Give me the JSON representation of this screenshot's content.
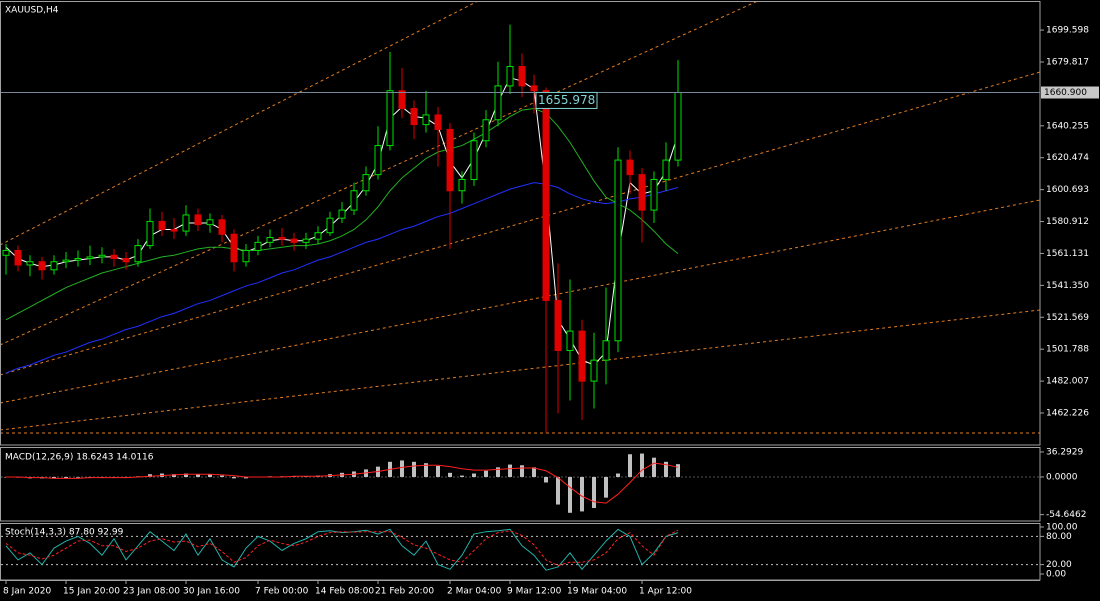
{
  "chart_data": [
    {
      "type": "candlestick",
      "title": "XAUUSD,H4",
      "categories": [
        "8 Jan 2020",
        null,
        null,
        null,
        null,
        "15 Jan 20:00",
        null,
        null,
        null,
        null,
        "23 Jan 08:00",
        null,
        null,
        null,
        null,
        "30 Jan 16:00",
        null,
        null,
        null,
        null,
        null,
        "7 Feb 00:00",
        null,
        null,
        null,
        null,
        "14 Feb 08:00",
        null,
        null,
        null,
        null,
        "21 Feb 20:00",
        null,
        null,
        null,
        null,
        null,
        "2 Mar 04:00",
        null,
        null,
        null,
        null,
        "9 Mar 12:00",
        null,
        null,
        null,
        null,
        "19 Mar 04:00",
        null,
        null,
        null,
        null,
        null,
        "1 Apr 12:00",
        null,
        null,
        null
      ],
      "open": [
        1560,
        1563,
        1554,
        1556,
        1551,
        1556,
        1557,
        1558,
        1559,
        1560,
        1558,
        1556,
        1566,
        1581,
        1576,
        1575,
        1585,
        1579,
        1582,
        1573,
        1556,
        1563,
        1568,
        1571,
        1570,
        1568,
        1570,
        1574,
        1583,
        1588,
        1600,
        1610,
        1628,
        1662,
        1651,
        1641,
        1647,
        1638,
        1600,
        1607,
        1631,
        1644,
        1665,
        1677,
        1665,
        1662,
        1532,
        1501,
        1513,
        1482,
        1495,
        1507,
        1619,
        1610,
        1588,
        1607,
        1619
      ],
      "high": [
        1567,
        1566,
        1560,
        1559,
        1560,
        1562,
        1563,
        1566,
        1565,
        1564,
        1562,
        1570,
        1589,
        1587,
        1583,
        1591,
        1589,
        1586,
        1585,
        1576,
        1567,
        1572,
        1576,
        1577,
        1574,
        1574,
        1578,
        1587,
        1593,
        1605,
        1615,
        1640,
        1686,
        1676,
        1656,
        1662,
        1652,
        1642,
        1612,
        1636,
        1650,
        1680,
        1703,
        1685,
        1672,
        1664,
        1555,
        1545,
        1520,
        1512,
        1540,
        1627,
        1625,
        1614,
        1612,
        1630,
        1681
      ],
      "low": [
        1548,
        1550,
        1547,
        1545,
        1548,
        1552,
        1553,
        1554,
        1555,
        1553,
        1551,
        1553,
        1564,
        1572,
        1570,
        1572,
        1575,
        1574,
        1568,
        1550,
        1553,
        1560,
        1565,
        1566,
        1563,
        1564,
        1567,
        1572,
        1580,
        1585,
        1597,
        1607,
        1625,
        1645,
        1632,
        1636,
        1615,
        1564,
        1592,
        1603,
        1627,
        1640,
        1660,
        1658,
        1648,
        1450,
        1462,
        1470,
        1458,
        1465,
        1480,
        1500,
        1598,
        1568,
        1580,
        1600,
        1615
      ],
      "close": [
        1563,
        1554,
        1556,
        1551,
        1556,
        1557,
        1558,
        1559,
        1560,
        1558,
        1556,
        1566,
        1581,
        1576,
        1575,
        1585,
        1579,
        1582,
        1573,
        1556,
        1563,
        1568,
        1571,
        1570,
        1568,
        1570,
        1574,
        1583,
        1588,
        1600,
        1610,
        1628,
        1662,
        1651,
        1641,
        1647,
        1638,
        1600,
        1607,
        1631,
        1644,
        1665,
        1677,
        1665,
        1662,
        1532,
        1501,
        1513,
        1482,
        1495,
        1507,
        1619,
        1610,
        1588,
        1607,
        1619,
        1660.9
      ],
      "up_color": "#00e000",
      "down_color": "#e00000",
      "series": [
        {
          "color": "#ffffff",
          "values": [
            1565,
            1558,
            1555,
            1553,
            1554,
            1556,
            1557,
            1558,
            1559,
            1559,
            1557,
            1560,
            1572,
            1576,
            1576,
            1580,
            1580,
            1580,
            1576,
            1565,
            1562,
            1565,
            1569,
            1570,
            1569,
            1569,
            1572,
            1578,
            1585,
            1593,
            1603,
            1617,
            1645,
            1652,
            1646,
            1645,
            1640,
            1618,
            1608,
            1620,
            1636,
            1655,
            1670,
            1668,
            1663,
            1600,
            1520,
            1508,
            1495,
            1492,
            1500,
            1560,
            1605,
            1598,
            1600,
            1612,
            1635
          ]
        },
        {
          "color": "#22b022",
          "values": [
            1520,
            1524,
            1528,
            1532,
            1536,
            1540,
            1543,
            1546,
            1549,
            1551,
            1553,
            1555,
            1557,
            1559,
            1560,
            1562,
            1564,
            1565,
            1565,
            1564,
            1563,
            1563,
            1564,
            1565,
            1566,
            1566,
            1567,
            1569,
            1572,
            1576,
            1582,
            1590,
            1600,
            1608,
            1614,
            1620,
            1624,
            1626,
            1628,
            1632,
            1636,
            1641,
            1646,
            1650,
            1651,
            1648,
            1640,
            1630,
            1618,
            1606,
            1596,
            1592,
            1588,
            1582,
            1575,
            1567,
            1561
          ]
        },
        {
          "color": "#2030ff",
          "values": [
            1487,
            1490,
            1492,
            1495,
            1498,
            1500,
            1503,
            1506,
            1508,
            1511,
            1514,
            1516,
            1519,
            1522,
            1524,
            1527,
            1530,
            1532,
            1535,
            1538,
            1541,
            1543,
            1546,
            1549,
            1551,
            1554,
            1557,
            1559,
            1562,
            1565,
            1568,
            1570,
            1573,
            1576,
            1578,
            1581,
            1584,
            1586,
            1589,
            1592,
            1595,
            1598,
            1601,
            1603,
            1605,
            1604,
            1602,
            1598,
            1595,
            1593,
            1592,
            1593,
            1595,
            1596,
            1598,
            1600,
            1602
          ]
        }
      ],
      "current_price": {
        "value": 1660.9,
        "label": "1660.900"
      },
      "annotation": 1655.978,
      "ylim": [
        1442.4,
        1717.0
      ],
      "yticks": [
        1699.598,
        1679.817,
        1640.255,
        1620.474,
        1600.693,
        1580.912,
        1561.131,
        {
          "value": 1541.35,
          "label": "1541.350"
        },
        1521.569,
        1501.788,
        1482.007,
        1462.226
      ]
    },
    {
      "type": "macd",
      "title": "MACD(12,26,9) 18.6243 14.0116",
      "values": [
        0,
        -1,
        -2,
        -2,
        -2,
        -2,
        -1,
        -1,
        0,
        0,
        -1,
        1,
        4,
        5,
        4,
        5,
        4,
        4,
        2,
        -2,
        -2,
        0,
        1,
        1,
        1,
        1,
        2,
        4,
        6,
        8,
        11,
        15,
        22,
        24,
        22,
        20,
        16,
        6,
        2,
        5,
        9,
        14,
        18,
        17,
        14,
        -8,
        -40,
        -52,
        -50,
        -45,
        -30,
        5,
        33,
        34,
        28,
        22,
        18.6243
      ],
      "signal": [
        0,
        0,
        -1,
        -1,
        -2,
        -2,
        -2,
        -1,
        -1,
        -1,
        -1,
        0,
        1,
        2,
        3,
        4,
        4,
        4,
        3,
        2,
        0,
        0,
        0,
        0,
        1,
        1,
        1,
        2,
        3,
        4,
        6,
        8,
        11,
        14,
        16,
        17,
        17,
        15,
        12,
        10,
        10,
        11,
        12,
        13,
        13,
        9,
        -1,
        -15,
        -28,
        -36,
        -38,
        -25,
        -8,
        10,
        20,
        18,
        14.0116
      ],
      "color": "#c0c0c0",
      "signal_color": "#ff2020",
      "ylim": [
        -63.9,
        43.5
      ],
      "yticks": [
        36.2929,
        {
          "value": 0,
          "label": "0.0000"
        },
        -54.6462
      ]
    },
    {
      "type": "stochastic",
      "title": "Stoch(14,3,3) 87.80 92.99",
      "series": [
        {
          "color": "#20b2aa",
          "values": [
            60,
            30,
            45,
            20,
            55,
            70,
            80,
            65,
            40,
            75,
            30,
            60,
            90,
            70,
            50,
            85,
            40,
            75,
            30,
            15,
            55,
            80,
            70,
            50,
            65,
            75,
            90,
            92,
            88,
            90,
            93,
            85,
            95,
            60,
            40,
            70,
            20,
            10,
            40,
            85,
            90,
            92,
            95,
            60,
            40,
            8,
            15,
            45,
            10,
            40,
            70,
            95,
            80,
            20,
            45,
            80,
            87.8
          ]
        },
        {
          "color": "#ff2020",
          "dashed": true,
          "values": [
            65,
            45,
            40,
            32,
            40,
            55,
            70,
            72,
            60,
            60,
            48,
            55,
            70,
            75,
            68,
            70,
            58,
            65,
            48,
            25,
            35,
            60,
            72,
            65,
            60,
            68,
            80,
            88,
            90,
            89,
            90,
            90,
            90,
            78,
            62,
            55,
            42,
            30,
            25,
            50,
            75,
            88,
            92,
            82,
            62,
            30,
            18,
            25,
            25,
            30,
            45,
            75,
            88,
            60,
            40,
            80,
            92.99
          ]
        }
      ],
      "levels": [
        80,
        20
      ],
      "ylim": [
        -12.8,
        108.5
      ],
      "yticks": [
        {
          "value": 100,
          "label": "100.00"
        },
        {
          "value": 80,
          "label": "80.00"
        },
        {
          "value": 20,
          "label": "20.00"
        },
        {
          "value": 0,
          "label": "0.00"
        }
      ]
    }
  ]
}
